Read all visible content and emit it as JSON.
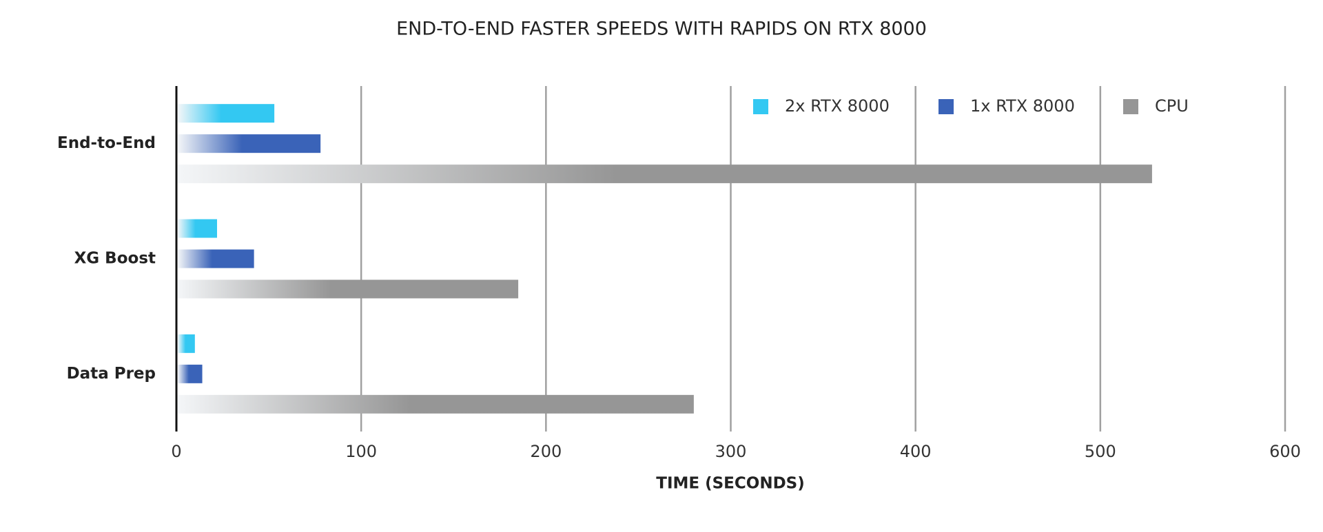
{
  "chart_data": {
    "type": "hbar",
    "title": "END-TO-END FASTER SPEEDS WITH RAPIDS ON RTX 8000",
    "xlabel": "TIME (SECONDS)",
    "categories": [
      "End-to-End",
      "XG Boost",
      "Data Prep"
    ],
    "series": [
      {
        "name": "2x RTX 8000",
        "color": "#33c8f2",
        "values": [
          53,
          22,
          10
        ]
      },
      {
        "name": "1x RTX 8000",
        "color": "#3a63b8",
        "values": [
          78,
          42,
          14
        ]
      },
      {
        "name": "CPU",
        "color": "#969696",
        "values": [
          528,
          185,
          280
        ]
      }
    ],
    "xlim": [
      0,
      600
    ],
    "xticks": [
      0,
      100,
      200,
      300,
      400,
      500,
      600
    ],
    "grid": true,
    "legend": "top-right"
  }
}
